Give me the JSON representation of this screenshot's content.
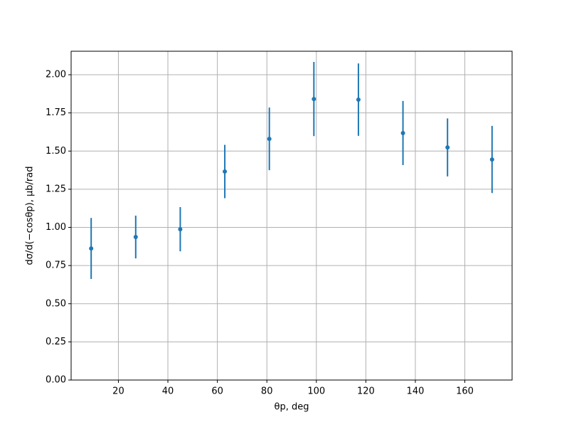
{
  "chart_data": {
    "type": "errorbar",
    "xlabel": "θp, deg",
    "ylabel": "dσ/d(−cosθp), μb/rad",
    "x": [
      9,
      27,
      45,
      63,
      81,
      99,
      117,
      135,
      153,
      171
    ],
    "series": [
      {
        "color": "#1f77b4",
        "values": [
          0.862,
          0.937,
          0.988,
          1.366,
          1.58,
          1.841,
          1.837,
          1.618,
          1.524,
          1.445
        ],
        "errors": [
          0.2,
          0.14,
          0.145,
          0.175,
          0.205,
          0.243,
          0.237,
          0.21,
          0.19,
          0.22
        ]
      }
    ],
    "xlim": [
      0.9,
      179.1
    ],
    "ylim": [
      0,
      2.154
    ],
    "xticks": [
      20,
      40,
      60,
      80,
      100,
      120,
      140,
      160
    ],
    "yticks": [
      {
        "value": 0,
        "label": "0.00"
      },
      {
        "value": 0.25,
        "label": "0.25"
      },
      {
        "value": 0.5,
        "label": "0.50"
      },
      {
        "value": 0.75,
        "label": "0.75"
      },
      {
        "value": 1,
        "label": "1.00"
      },
      {
        "value": 1.25,
        "label": "1.25"
      },
      {
        "value": 1.5,
        "label": "1.50"
      },
      {
        "value": 1.75,
        "label": "1.75"
      },
      {
        "value": 2,
        "label": "2.00"
      }
    ],
    "grid": true
  }
}
